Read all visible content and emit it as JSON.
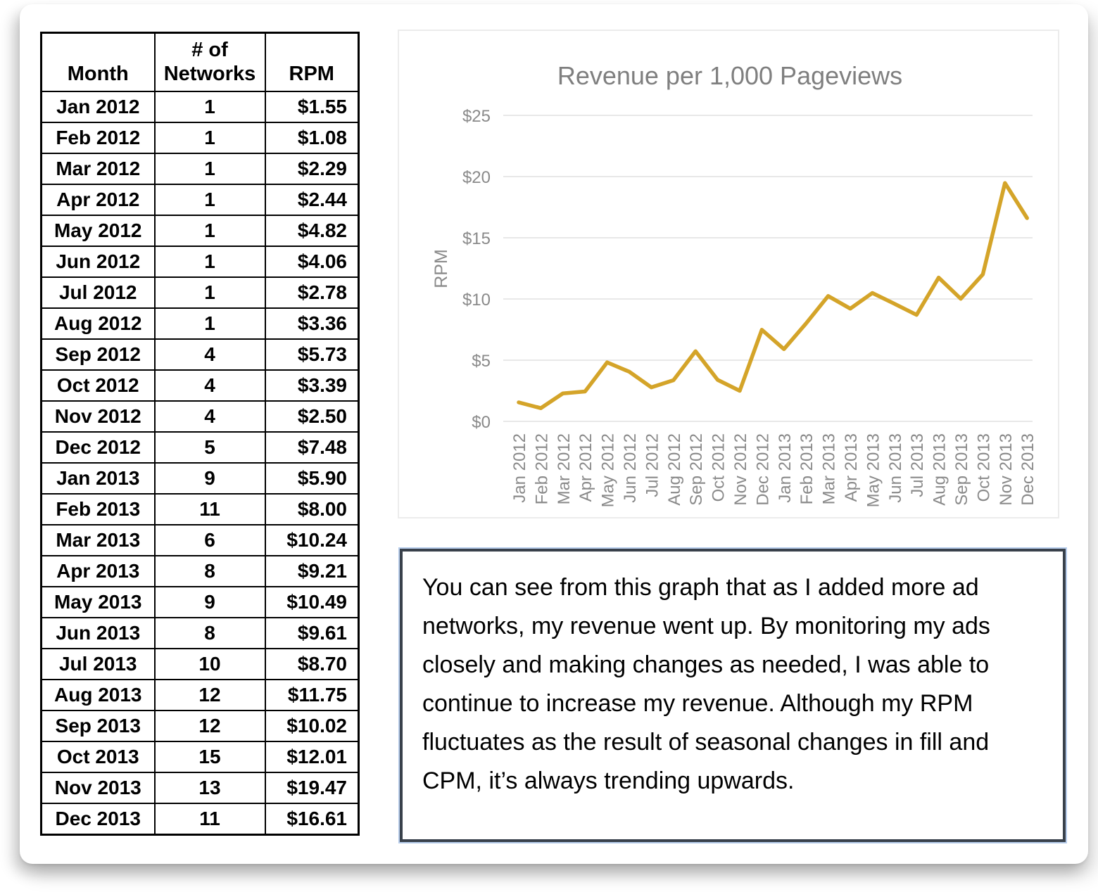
{
  "table": {
    "headers": [
      "Month",
      "# of Networks",
      "RPM"
    ],
    "rows": [
      [
        "Jan 2012",
        "1",
        "$1.55"
      ],
      [
        "Feb 2012",
        "1",
        "$1.08"
      ],
      [
        "Mar 2012",
        "1",
        "$2.29"
      ],
      [
        "Apr 2012",
        "1",
        "$2.44"
      ],
      [
        "May 2012",
        "1",
        "$4.82"
      ],
      [
        "Jun 2012",
        "1",
        "$4.06"
      ],
      [
        "Jul 2012",
        "1",
        "$2.78"
      ],
      [
        "Aug 2012",
        "1",
        "$3.36"
      ],
      [
        "Sep 2012",
        "4",
        "$5.73"
      ],
      [
        "Oct 2012",
        "4",
        "$3.39"
      ],
      [
        "Nov 2012",
        "4",
        "$2.50"
      ],
      [
        "Dec 2012",
        "5",
        "$7.48"
      ],
      [
        "Jan 2013",
        "9",
        "$5.90"
      ],
      [
        "Feb 2013",
        "11",
        "$8.00"
      ],
      [
        "Mar 2013",
        "6",
        "$10.24"
      ],
      [
        "Apr 2013",
        "8",
        "$9.21"
      ],
      [
        "May 2013",
        "9",
        "$10.49"
      ],
      [
        "Jun 2013",
        "8",
        "$9.61"
      ],
      [
        "Jul 2013",
        "10",
        "$8.70"
      ],
      [
        "Aug 2013",
        "12",
        "$11.75"
      ],
      [
        "Sep 2013",
        "12",
        "$10.02"
      ],
      [
        "Oct 2013",
        "15",
        "$12.01"
      ],
      [
        "Nov 2013",
        "13",
        "$19.47"
      ],
      [
        "Dec 2013",
        "11",
        "$16.61"
      ]
    ]
  },
  "chart_data": {
    "type": "line",
    "title": "Revenue per 1,000 Pageviews",
    "xlabel": "",
    "ylabel": "RPM",
    "x": [
      "Jan 2012",
      "Feb 2012",
      "Mar 2012",
      "Apr 2012",
      "May 2012",
      "Jun 2012",
      "Jul 2012",
      "Aug 2012",
      "Sep 2012",
      "Oct 2012",
      "Nov 2012",
      "Dec 2012",
      "Jan 2013",
      "Feb 2013",
      "Mar 2013",
      "Apr 2013",
      "May 2013",
      "Jun 2013",
      "Jul 2013",
      "Aug 2013",
      "Sep 2013",
      "Oct 2013",
      "Nov 2013",
      "Dec 2013"
    ],
    "values": [
      1.55,
      1.08,
      2.29,
      2.44,
      4.82,
      4.06,
      2.78,
      3.36,
      5.73,
      3.39,
      2.5,
      7.48,
      5.9,
      8.0,
      10.24,
      9.21,
      10.49,
      9.61,
      8.7,
      11.75,
      10.02,
      12.01,
      19.47,
      16.61
    ],
    "ylim": [
      0,
      25
    ],
    "ytick_labels": [
      "$0",
      "$5",
      "$10",
      "$15",
      "$20",
      "$25"
    ],
    "grid": true,
    "legend": "none",
    "line_color": "#D4A429",
    "title_color": "#7F7F7F",
    "axis_color": "#8A8A8A",
    "gridline_color": "#E8E8E8"
  },
  "note": {
    "text": "You can see from this graph that as I added more ad networks, my revenue went up. By monitoring my ads closely and making changes as needed, I was able to continue to increase my revenue. Although my RPM fluctuates as the result of seasonal changes in fill and CPM, it’s always trending upwards."
  }
}
